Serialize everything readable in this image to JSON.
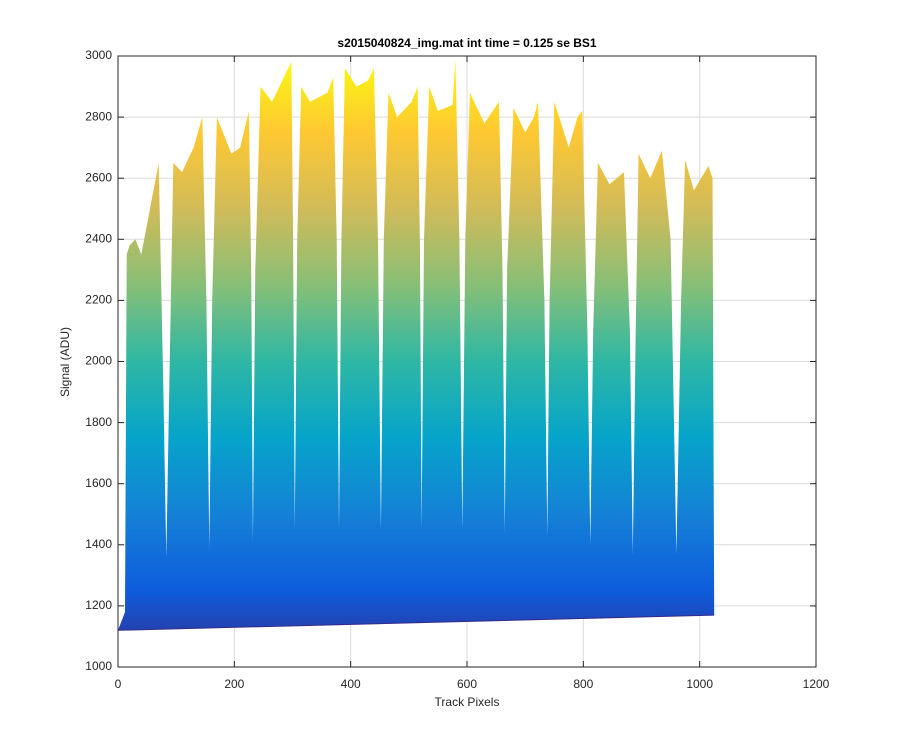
{
  "chart_data": {
    "type": "area",
    "title": "s2015040824_img.mat int time = 0.125 se   BS1",
    "x_label": "Track Pixels",
    "y_label": "Signal (ADU)",
    "xlim": [
      0,
      1200
    ],
    "ylim": [
      1000,
      3000
    ],
    "xticks": [
      0,
      200,
      400,
      600,
      800,
      1000,
      1200
    ],
    "yticks": [
      1000,
      1200,
      1400,
      1600,
      1800,
      2000,
      2200,
      2400,
      2600,
      2800,
      3000
    ],
    "grid": true,
    "colormap": [
      "#352a87",
      "#0f5cdd",
      "#1481d6",
      "#06a4ca",
      "#2eb7a4",
      "#87bf77",
      "#d1bb59",
      "#fec832",
      "#f9fb0e"
    ],
    "series": [
      {
        "x": [
          0,
          8,
          12,
          15,
          20,
          30,
          40,
          55,
          70,
          78,
          83,
          88,
          95,
          110,
          130,
          145,
          152,
          157,
          162,
          170,
          195,
          210,
          225,
          229,
          232,
          236,
          245,
          265,
          290,
          298,
          301,
          304,
          308,
          315,
          330,
          360,
          370,
          376,
          380,
          384,
          390,
          410,
          430,
          440,
          447,
          452,
          457,
          465,
          480,
          505,
          515,
          519,
          522,
          526,
          535,
          550,
          575,
          580,
          587,
          592,
          597,
          605,
          630,
          655,
          661,
          665,
          669,
          680,
          700,
          715,
          722,
          733,
          738,
          742,
          750,
          775,
          790,
          798,
          807,
          812,
          817,
          825,
          845,
          870,
          880,
          885,
          890,
          895,
          915,
          935,
          950,
          960,
          968,
          975,
          990,
          1015,
          1022,
          1025
        ],
        "values": [
          1120,
          1160,
          1180,
          2350,
          2380,
          2400,
          2350,
          2500,
          2650,
          1900,
          1360,
          1900,
          2650,
          2620,
          2700,
          2800,
          2200,
          1390,
          2200,
          2800,
          2680,
          2700,
          2820,
          2300,
          1410,
          2300,
          2900,
          2850,
          2950,
          2980,
          2400,
          1450,
          2400,
          2900,
          2850,
          2880,
          2930,
          2400,
          1450,
          2400,
          2960,
          2900,
          2920,
          2960,
          2400,
          1450,
          2400,
          2880,
          2800,
          2850,
          2900,
          2400,
          1450,
          2400,
          2900,
          2820,
          2840,
          2990,
          2400,
          1450,
          2400,
          2880,
          2780,
          2850,
          2300,
          1440,
          2300,
          2830,
          2750,
          2800,
          2850,
          2200,
          1430,
          2200,
          2850,
          2700,
          2800,
          2820,
          2100,
          1400,
          2100,
          2650,
          2580,
          2620,
          2100,
          1370,
          2100,
          2680,
          2600,
          2690,
          2400,
          1370,
          2200,
          2660,
          2560,
          2640,
          2600,
          1170
        ]
      },
      {
        "x": [
          0,
          1025
        ],
        "values": [
          1120,
          1170
        ]
      }
    ]
  }
}
